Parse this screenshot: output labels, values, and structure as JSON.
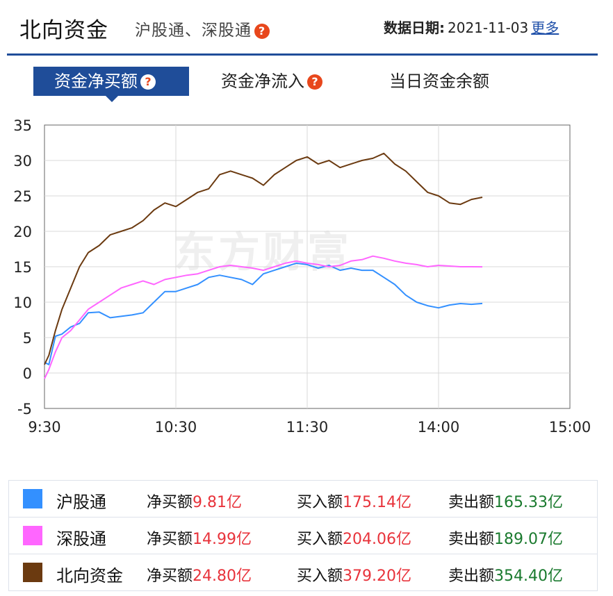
{
  "header": {
    "title": "北向资金",
    "subtitle": "沪股通、深股通",
    "date_label": "数据日期:",
    "date_value": "2021-11-03",
    "more_link": "更多"
  },
  "tabs": [
    {
      "label": "资金净买额",
      "active": true,
      "has_help": true
    },
    {
      "label": "资金净流入",
      "active": false,
      "has_help": true
    },
    {
      "label": "当日资金余额",
      "active": false,
      "has_help": false
    }
  ],
  "help_glyph": "?",
  "watermark": "东方财富",
  "chart_data": {
    "type": "line",
    "x_ticks": [
      "9:30",
      "10:30",
      "11:30",
      "14:00",
      "15:00"
    ],
    "x_range_minutes": [
      0,
      240
    ],
    "y_ticks": [
      35,
      30,
      25,
      20,
      15,
      10,
      5,
      0,
      -5
    ],
    "ylim": [
      -5,
      35
    ],
    "grid": true,
    "series": [
      {
        "name": "沪股通",
        "color": "#3390ff",
        "points": [
          [
            0,
            1.5
          ],
          [
            2,
            1.2
          ],
          [
            5,
            5.2
          ],
          [
            8,
            5.5
          ],
          [
            12,
            6.5
          ],
          [
            16,
            7.0
          ],
          [
            20,
            8.5
          ],
          [
            25,
            8.6
          ],
          [
            30,
            7.8
          ],
          [
            35,
            8.0
          ],
          [
            40,
            8.2
          ],
          [
            45,
            8.5
          ],
          [
            50,
            10.0
          ],
          [
            55,
            11.5
          ],
          [
            60,
            11.5
          ],
          [
            65,
            12.0
          ],
          [
            70,
            12.5
          ],
          [
            75,
            13.5
          ],
          [
            80,
            13.8
          ],
          [
            85,
            13.5
          ],
          [
            90,
            13.2
          ],
          [
            95,
            12.5
          ],
          [
            100,
            14.0
          ],
          [
            105,
            14.5
          ],
          [
            110,
            15.0
          ],
          [
            115,
            15.5
          ],
          [
            120,
            15.3
          ],
          [
            125,
            14.8
          ],
          [
            130,
            15.2
          ],
          [
            135,
            14.5
          ],
          [
            140,
            14.8
          ],
          [
            145,
            14.5
          ],
          [
            150,
            14.5
          ],
          [
            155,
            13.5
          ],
          [
            160,
            12.5
          ],
          [
            165,
            11.0
          ],
          [
            170,
            10.0
          ],
          [
            175,
            9.5
          ],
          [
            180,
            9.2
          ],
          [
            185,
            9.6
          ],
          [
            190,
            9.8
          ],
          [
            195,
            9.7
          ],
          [
            200,
            9.81
          ]
        ]
      },
      {
        "name": "深股通",
        "color": "#ff66ff",
        "points": [
          [
            0,
            -0.8
          ],
          [
            2,
            0.5
          ],
          [
            5,
            3.0
          ],
          [
            8,
            5.0
          ],
          [
            12,
            6.0
          ],
          [
            16,
            7.5
          ],
          [
            20,
            9.0
          ],
          [
            25,
            10.0
          ],
          [
            30,
            11.0
          ],
          [
            35,
            12.0
          ],
          [
            40,
            12.5
          ],
          [
            45,
            13.0
          ],
          [
            50,
            12.5
          ],
          [
            55,
            13.2
          ],
          [
            60,
            13.5
          ],
          [
            65,
            13.8
          ],
          [
            70,
            14.0
          ],
          [
            75,
            14.5
          ],
          [
            80,
            15.0
          ],
          [
            85,
            15.2
          ],
          [
            90,
            15.0
          ],
          [
            95,
            14.8
          ],
          [
            100,
            14.5
          ],
          [
            105,
            15.0
          ],
          [
            110,
            15.5
          ],
          [
            115,
            15.8
          ],
          [
            120,
            15.5
          ],
          [
            125,
            15.3
          ],
          [
            130,
            15.0
          ],
          [
            135,
            15.2
          ],
          [
            140,
            15.8
          ],
          [
            145,
            16.0
          ],
          [
            150,
            16.5
          ],
          [
            155,
            16.2
          ],
          [
            160,
            15.8
          ],
          [
            165,
            15.5
          ],
          [
            170,
            15.3
          ],
          [
            175,
            15.0
          ],
          [
            180,
            15.2
          ],
          [
            185,
            15.1
          ],
          [
            190,
            15.0
          ],
          [
            195,
            15.0
          ],
          [
            200,
            14.99
          ]
        ]
      },
      {
        "name": "北向资金",
        "color": "#6b3a10",
        "points": [
          [
            0,
            1.2
          ],
          [
            2,
            2.5
          ],
          [
            5,
            6.0
          ],
          [
            8,
            9.0
          ],
          [
            12,
            12.0
          ],
          [
            16,
            15.0
          ],
          [
            20,
            17.0
          ],
          [
            25,
            18.0
          ],
          [
            30,
            19.5
          ],
          [
            35,
            20.0
          ],
          [
            40,
            20.5
          ],
          [
            45,
            21.5
          ],
          [
            50,
            23.0
          ],
          [
            55,
            24.0
          ],
          [
            60,
            23.5
          ],
          [
            65,
            24.5
          ],
          [
            70,
            25.5
          ],
          [
            75,
            26.0
          ],
          [
            80,
            28.0
          ],
          [
            85,
            28.5
          ],
          [
            90,
            28.0
          ],
          [
            95,
            27.5
          ],
          [
            100,
            26.5
          ],
          [
            105,
            28.0
          ],
          [
            110,
            29.0
          ],
          [
            115,
            30.0
          ],
          [
            120,
            30.5
          ],
          [
            125,
            29.5
          ],
          [
            130,
            30.0
          ],
          [
            135,
            29.0
          ],
          [
            140,
            29.5
          ],
          [
            145,
            30.0
          ],
          [
            150,
            30.3
          ],
          [
            155,
            31.0
          ],
          [
            160,
            29.5
          ],
          [
            165,
            28.5
          ],
          [
            170,
            27.0
          ],
          [
            175,
            25.5
          ],
          [
            180,
            25.0
          ],
          [
            185,
            24.0
          ],
          [
            190,
            23.8
          ],
          [
            195,
            24.5
          ],
          [
            200,
            24.8
          ]
        ]
      }
    ]
  },
  "legend": {
    "net_label": "净买额",
    "buy_label": "买入额",
    "sell_label": "卖出额",
    "rows": [
      {
        "name": "沪股通",
        "color": "#3390ff",
        "net": "9.81亿",
        "buy": "175.14亿",
        "sell": "165.33亿"
      },
      {
        "name": "深股通",
        "color": "#ff66ff",
        "net": "14.99亿",
        "buy": "204.06亿",
        "sell": "189.07亿"
      },
      {
        "name": "北向资金",
        "color": "#6b3a10",
        "net": "24.80亿",
        "buy": "379.20亿",
        "sell": "354.40亿"
      }
    ]
  }
}
